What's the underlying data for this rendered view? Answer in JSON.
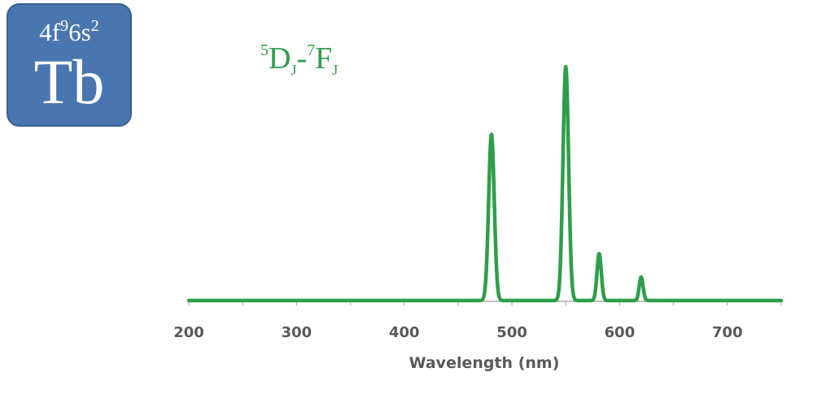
{
  "element": {
    "config_base": "4f",
    "config_sup": "9",
    "config_rest": "6s",
    "config_sup2": "2",
    "symbol": "Tb"
  },
  "transition": {
    "sup1": "5",
    "term1": "D",
    "sub1": "J",
    "dash": "-",
    "sup2": "7",
    "term2": "F",
    "sub2": "J"
  },
  "colors": {
    "series": "#2e9e4a",
    "tile": "#4a76b0",
    "axis": "#bfbfbf"
  },
  "chart_data": {
    "type": "line",
    "title": "",
    "xlabel": "Wavelength (nm)",
    "ylabel": "",
    "xlim": [
      200,
      750
    ],
    "ylim": [
      0,
      1
    ],
    "xticks": [
      200,
      300,
      400,
      500,
      600,
      700
    ],
    "grid": false,
    "peaks": [
      {
        "center": 481,
        "height": 0.71,
        "width": 2.6
      },
      {
        "center": 550,
        "height": 1.0,
        "width": 2.6
      },
      {
        "center": 581,
        "height": 0.2,
        "width": 2.0
      },
      {
        "center": 620,
        "height": 0.1,
        "width": 1.8
      }
    ]
  }
}
